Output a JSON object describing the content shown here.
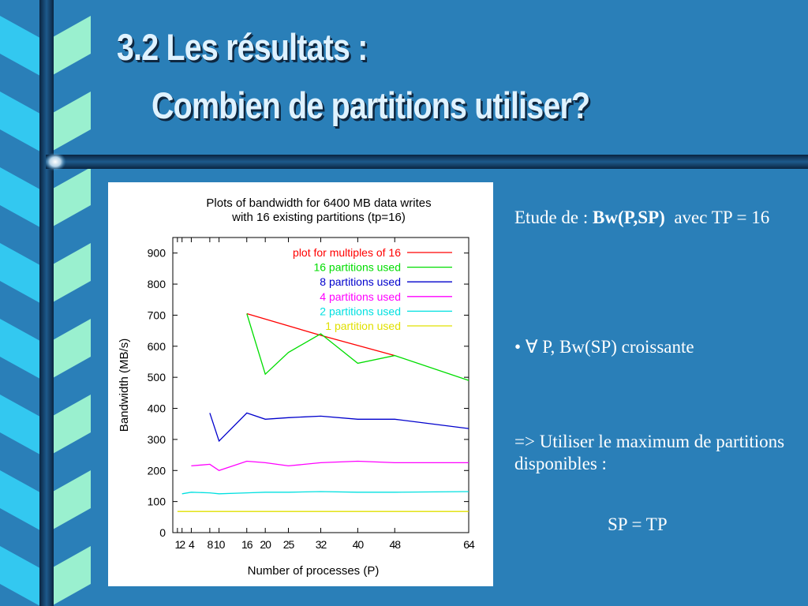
{
  "slide": {
    "title_line1": "3.2 Les résultats :",
    "title_line2": "Combien de partitions utiliser?",
    "text": {
      "etude_prefix": "Etude de : ",
      "etude_bold": "Bw(P,SP)",
      "etude_suffix": "  avec TP = 16",
      "bullet_symbol": "•",
      "bullet_text": "∀ P, Bw(SP) croissante",
      "conclusion": "=> Utiliser le maximum de partitions disponibles :",
      "formula": "SP = TP"
    },
    "colors": {
      "background": "#2a7fb8",
      "ribbon_cyan": "#33c8f0",
      "ribbon_mint": "#9af0cf",
      "bar_dark": "#0c2e4e"
    }
  },
  "chart_data": {
    "type": "line",
    "title": "Plots of bandwidth for 6400 MB data writes with 16 existing partitions (tp=16)",
    "title_lines": [
      "Plots of bandwidth for 6400 MB data writes",
      "with 16 existing partitions (tp=16)"
    ],
    "xlabel": "Number of processes (P)",
    "ylabel": "Bandwidth (MB/s)",
    "xlim": [
      0,
      64
    ],
    "ylim": [
      0,
      950
    ],
    "x_ticks": [
      1,
      2,
      4,
      8,
      10,
      16,
      20,
      25,
      32,
      40,
      48,
      64
    ],
    "x_tick_labels": [
      "1",
      "2",
      "4",
      "8",
      "10",
      "16",
      "20",
      "25",
      "32",
      "40",
      "48",
      "64"
    ],
    "y_ticks": [
      0,
      100,
      200,
      300,
      400,
      500,
      600,
      700,
      800,
      900
    ],
    "y_tick_labels": [
      "0",
      "100",
      "200",
      "300",
      "400",
      "500",
      "600",
      "700",
      "800",
      "900"
    ],
    "legend_position": "top-right",
    "grid": false,
    "series": [
      {
        "name": "plot for multiples of 16",
        "color": "#ff0000",
        "x": [
          16,
          32,
          48
        ],
        "values": [
          705,
          635,
          570
        ]
      },
      {
        "name": "16 partitions used",
        "color": "#00dd00",
        "x": [
          16,
          20,
          25,
          32,
          40,
          48,
          64
        ],
        "values": [
          705,
          510,
          580,
          640,
          545,
          570,
          490
        ]
      },
      {
        "name": "8 partitions used",
        "color": "#0000cc",
        "x": [
          8,
          10,
          16,
          20,
          25,
          32,
          40,
          48,
          64
        ],
        "values": [
          385,
          295,
          385,
          365,
          370,
          375,
          365,
          365,
          335
        ]
      },
      {
        "name": "4 partitions used",
        "color": "#ff00ff",
        "x": [
          4,
          8,
          10,
          16,
          20,
          25,
          32,
          40,
          48,
          64
        ],
        "values": [
          215,
          220,
          200,
          230,
          225,
          215,
          225,
          230,
          225,
          225
        ]
      },
      {
        "name": "2 partitions used",
        "color": "#00e0e0",
        "x": [
          2,
          4,
          8,
          10,
          16,
          20,
          25,
          32,
          40,
          48,
          64
        ],
        "values": [
          125,
          130,
          128,
          125,
          128,
          130,
          130,
          132,
          130,
          130,
          132
        ]
      },
      {
        "name": "1 partition used",
        "color": "#e0e000",
        "x": [
          1,
          2,
          4,
          8,
          10,
          16,
          20,
          25,
          32,
          40,
          48,
          64
        ],
        "values": [
          68,
          68,
          68,
          68,
          68,
          68,
          68,
          68,
          68,
          68,
          68,
          68
        ]
      }
    ]
  }
}
